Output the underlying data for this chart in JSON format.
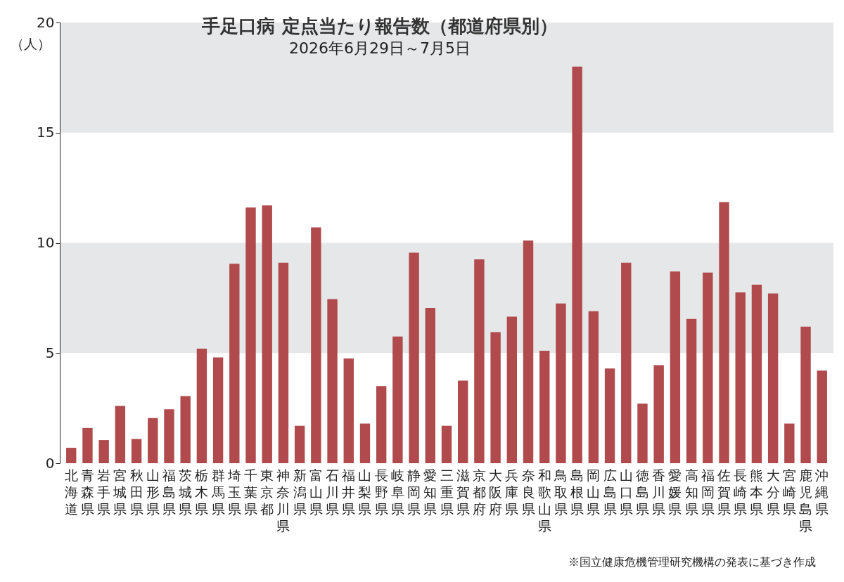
{
  "chart_data": {
    "type": "bar",
    "title": "手足口病 定点当たり報告数（都道府県別）",
    "subtitle": "2026年6月29日～7月5日",
    "ylabel": "（人）",
    "categories": [
      "北海道",
      "青森県",
      "岩手県",
      "宮城県",
      "秋田県",
      "山形県",
      "福島県",
      "茨城県",
      "栃木県",
      "群馬県",
      "埼玉県",
      "千葉県",
      "東京都",
      "神奈川県",
      "新潟県",
      "富山県",
      "石川県",
      "福井県",
      "山梨県",
      "長野県",
      "岐阜県",
      "静岡県",
      "愛知県",
      "三重県",
      "滋賀県",
      "京都府",
      "大阪府",
      "兵庫県",
      "奈良県",
      "和歌山県",
      "鳥取県",
      "島根県",
      "岡山県",
      "広島県",
      "山口県",
      "徳島県",
      "香川県",
      "愛媛県",
      "高知県",
      "福岡県",
      "佐賀県",
      "長崎県",
      "熊本県",
      "大分県",
      "宮崎県",
      "鹿児島県",
      "沖縄県"
    ],
    "values": [
      0.7,
      1.6,
      1.05,
      2.6,
      1.1,
      2.05,
      2.45,
      3.05,
      5.2,
      4.8,
      9.05,
      11.6,
      11.7,
      9.1,
      1.7,
      10.7,
      7.45,
      4.75,
      1.8,
      3.5,
      5.75,
      9.55,
      7.05,
      1.7,
      3.75,
      9.25,
      5.95,
      6.65,
      10.1,
      5.1,
      7.25,
      18.0,
      6.9,
      4.3,
      9.1,
      2.7,
      4.45,
      8.7,
      6.55,
      8.65,
      11.85,
      7.75,
      8.1,
      7.7,
      1.8,
      6.2,
      4.2
    ],
    "color": "#b04a4c",
    "ylim": [
      0,
      20
    ],
    "yticks": [
      0,
      5,
      10,
      15,
      20
    ],
    "bands": [
      {
        "axis": "y",
        "from": 5,
        "to": 10,
        "color": "#e6e7e8"
      },
      {
        "axis": "y",
        "from": 15,
        "to": 20,
        "color": "#e6e7e8"
      }
    ],
    "annotations": [
      "※国立健康危機管理研究機構の発表に基づき作成"
    ]
  }
}
